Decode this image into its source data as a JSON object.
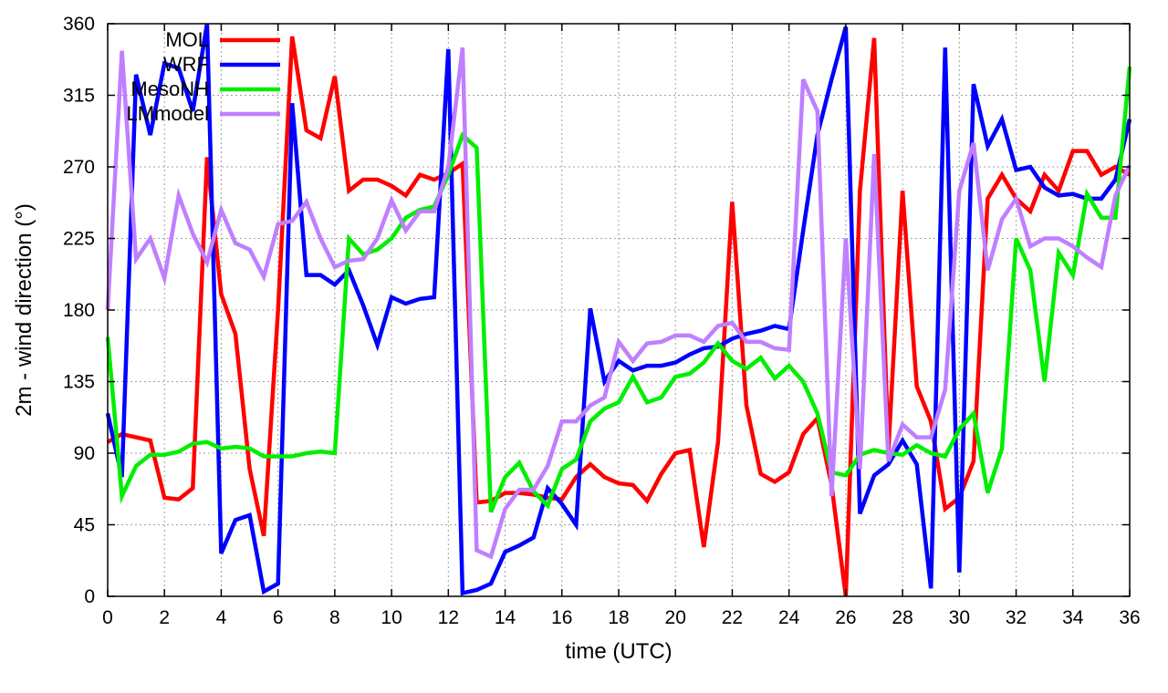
{
  "chart_data": {
    "type": "line",
    "xlabel": "time (UTC)",
    "ylabel": "2m - wind direction (°)",
    "xlim": [
      0,
      36
    ],
    "ylim": [
      0,
      360
    ],
    "xticks": [
      0,
      2,
      4,
      6,
      8,
      10,
      12,
      14,
      16,
      18,
      20,
      22,
      24,
      26,
      28,
      30,
      32,
      34,
      36
    ],
    "yticks": [
      0,
      45,
      90,
      135,
      180,
      225,
      270,
      315,
      360
    ],
    "grid": true,
    "legend_position": "top-left",
    "series": [
      {
        "name": "MOL",
        "color": "#ff0000",
        "x": [
          0,
          0.5,
          1,
          1.5,
          2,
          2.5,
          3,
          3.5,
          4,
          4.5,
          5,
          5.5,
          6,
          6.5,
          7,
          7.5,
          8,
          8.5,
          9,
          9.5,
          10,
          10.5,
          11,
          11.5,
          12,
          12.5,
          13,
          13.5,
          14,
          14.5,
          15,
          15.5,
          16,
          16.5,
          17,
          17.5,
          18,
          18.5,
          19,
          19.5,
          20,
          20.5,
          21,
          21.5,
          22,
          22.5,
          23,
          23.5,
          24,
          24.5,
          25,
          25.5,
          26,
          26.5,
          27,
          27.5,
          28,
          28.5,
          29,
          29.5,
          30,
          30.5,
          31,
          31.5,
          32,
          32.5,
          33,
          33.5,
          34,
          34.5,
          35,
          35.5,
          36
        ],
        "values": [
          97,
          102,
          100,
          98,
          62,
          61,
          68,
          276,
          190,
          165,
          80,
          38,
          180,
          352,
          293,
          288,
          327,
          255,
          262,
          262,
          258,
          252,
          265,
          262,
          266,
          272,
          59,
          60,
          65,
          65,
          64,
          62,
          61,
          75,
          83,
          75,
          71,
          70,
          60,
          77,
          90,
          92,
          31,
          97,
          248,
          120,
          77,
          72,
          78,
          102,
          112,
          70,
          0,
          255,
          351,
          92,
          255,
          132,
          110,
          55,
          62,
          85,
          250,
          265,
          250,
          242,
          265,
          255,
          280,
          280,
          265,
          270,
          265
        ]
      },
      {
        "name": "WRF",
        "color": "#0000ff",
        "x": [
          0,
          0.5,
          1,
          1.5,
          2,
          2.5,
          3,
          3.5,
          4,
          4.5,
          5,
          5.5,
          6,
          6.5,
          7,
          7.5,
          8,
          8.5,
          9,
          9.5,
          10,
          10.5,
          11,
          11.5,
          12,
          12.5,
          13,
          13.5,
          14,
          14.5,
          15,
          15.5,
          16,
          16.5,
          17,
          17.5,
          18,
          18.5,
          19,
          19.5,
          20,
          20.5,
          21,
          21.5,
          22,
          22.5,
          23,
          23.5,
          24,
          24.5,
          25,
          25.5,
          26,
          26.5,
          27,
          27.5,
          28,
          28.5,
          29,
          29.5,
          30,
          30.5,
          31,
          31.5,
          32,
          32.5,
          33,
          33.5,
          34,
          34.5,
          35,
          35.5,
          36
        ],
        "values": [
          115,
          75,
          328,
          290,
          335,
          332,
          305,
          360,
          27,
          48,
          51,
          3,
          8,
          310,
          202,
          202,
          196,
          205,
          183,
          158,
          188,
          184,
          187,
          188,
          344,
          2,
          4,
          8,
          28,
          32,
          37,
          68,
          58,
          45,
          181,
          135,
          148,
          142,
          145,
          145,
          147,
          152,
          156,
          157,
          162,
          165,
          167,
          170,
          168,
          230,
          290,
          325,
          358,
          52,
          76,
          83,
          98,
          83,
          5,
          345,
          15,
          322,
          283,
          300,
          268,
          270,
          257,
          252,
          253,
          250,
          250,
          262,
          300
        ]
      },
      {
        "name": "MesoNH",
        "color": "#00ee00",
        "x": [
          0,
          0.5,
          1,
          1.5,
          2,
          2.5,
          3,
          3.5,
          4,
          4.5,
          5,
          5.5,
          6,
          6.5,
          7,
          7.5,
          8,
          8.5,
          9,
          9.5,
          10,
          10.5,
          11,
          11.5,
          12,
          12.5,
          13,
          13.5,
          14,
          14.5,
          15,
          15.5,
          16,
          16.5,
          17,
          17.5,
          18,
          18.5,
          19,
          19.5,
          20,
          20.5,
          21,
          21.5,
          22,
          22.5,
          23,
          23.5,
          24,
          24.5,
          25,
          25.5,
          26,
          26.5,
          27,
          27.5,
          28,
          28.5,
          29,
          29.5,
          30,
          30.5,
          31,
          31.5,
          32,
          32.5,
          33,
          33.5,
          34,
          34.5,
          35,
          35.5,
          36
        ],
        "values": [
          163,
          63,
          82,
          89,
          89,
          91,
          96,
          97,
          93,
          94,
          93,
          88,
          88,
          88,
          90,
          91,
          90,
          225,
          215,
          218,
          225,
          238,
          243,
          245,
          265,
          290,
          282,
          53,
          75,
          84,
          66,
          57,
          80,
          86,
          110,
          118,
          122,
          138,
          122,
          125,
          138,
          140,
          147,
          159,
          148,
          143,
          150,
          137,
          145,
          135,
          115,
          78,
          76,
          89,
          92,
          90,
          89,
          95,
          90,
          88,
          105,
          115,
          65,
          93,
          225,
          205,
          135,
          216,
          202,
          253,
          238,
          238,
          333
        ]
      },
      {
        "name": "LMmodel",
        "color": "#bf7fff",
        "x": [
          0,
          0.5,
          1,
          1.5,
          2,
          2.5,
          3,
          3.5,
          4,
          4.5,
          5,
          5.5,
          6,
          6.5,
          7,
          7.5,
          8,
          8.5,
          9,
          9.5,
          10,
          10.5,
          11,
          11.5,
          12,
          12.5,
          13,
          13.5,
          14,
          14.5,
          15,
          15.5,
          16,
          16.5,
          17,
          17.5,
          18,
          18.5,
          19,
          19.5,
          20,
          20.5,
          21,
          21.5,
          22,
          22.5,
          23,
          23.5,
          24,
          24.5,
          25,
          25.5,
          26,
          26.5,
          27,
          27.5,
          28,
          28.5,
          29,
          29.5,
          30,
          30.5,
          31,
          31.5,
          32,
          32.5,
          33,
          33.5,
          34,
          34.5,
          35,
          35.5,
          36
        ],
        "values": [
          180,
          343,
          212,
          225,
          200,
          252,
          228,
          210,
          243,
          222,
          218,
          201,
          234,
          236,
          248,
          225,
          207,
          211,
          212,
          225,
          249,
          230,
          242,
          242,
          270,
          345,
          29,
          25,
          55,
          67,
          67,
          82,
          110,
          110,
          120,
          125,
          160,
          148,
          159,
          160,
          164,
          164,
          160,
          170,
          172,
          160,
          160,
          156,
          155,
          325,
          305,
          63,
          225,
          80,
          278,
          85,
          108,
          100,
          100,
          130,
          255,
          285,
          205,
          237,
          250,
          220,
          225,
          225,
          220,
          213,
          207,
          252,
          271
        ]
      }
    ]
  }
}
